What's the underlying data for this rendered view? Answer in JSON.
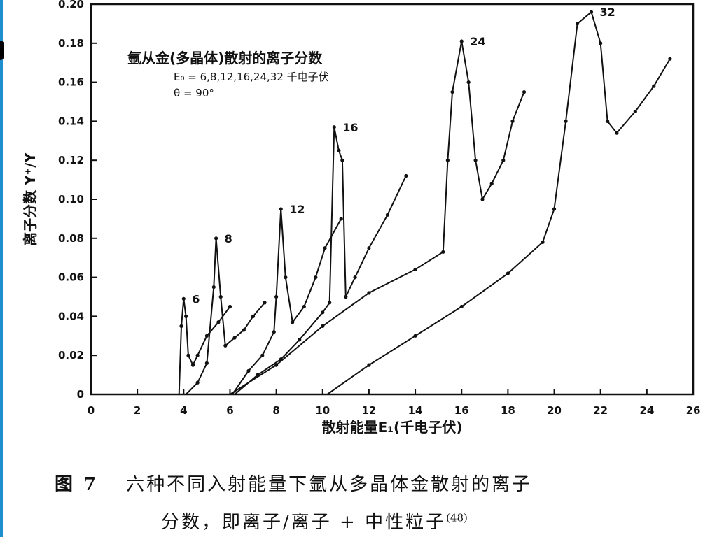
{
  "chart_data": {
    "type": "line",
    "title": "氩从金(多晶体)散射的离子分数",
    "params_line1": "E₀ = 6,8,12,16,24,32 千电子伏",
    "params_line2": "θ = 90°",
    "xlabel": "散射能量E₁(千电子伏)",
    "ylabel": "离子分数 Y⁺/Y",
    "xlim": [
      0,
      26
    ],
    "ylim": [
      0,
      0.2
    ],
    "xticks": [
      "0",
      "2",
      "4",
      "6",
      "8",
      "10",
      "12",
      "14",
      "16",
      "18",
      "20",
      "22",
      "24",
      "26"
    ],
    "yticks": [
      "0",
      "0.02",
      "0.04",
      "0.06",
      "0.08",
      "0.10",
      "0.12",
      "0.14",
      "0.16",
      "0.18",
      "0.20"
    ],
    "series": [
      {
        "name": "6",
        "x": [
          0,
          3.8,
          3.9,
          4.0,
          4.1,
          4.2,
          4.4,
          4.6,
          5.0,
          5.5,
          6.0
        ],
        "y": [
          0,
          0,
          0.035,
          0.049,
          0.04,
          0.02,
          0.015,
          0.02,
          0.03,
          0.037,
          0.045
        ]
      },
      {
        "name": "8",
        "x": [
          4.1,
          4.6,
          5.0,
          5.3,
          5.4,
          5.6,
          5.8,
          6.2,
          6.6,
          7.0,
          7.5
        ],
        "y": [
          0,
          0.006,
          0.016,
          0.055,
          0.08,
          0.05,
          0.025,
          0.029,
          0.033,
          0.04,
          0.047
        ]
      },
      {
        "name": "12",
        "x": [
          6.1,
          6.8,
          7.4,
          7.9,
          8.0,
          8.2,
          8.4,
          8.7,
          9.2,
          9.7,
          10.1,
          10.8
        ],
        "y": [
          0,
          0.012,
          0.02,
          0.032,
          0.05,
          0.095,
          0.06,
          0.037,
          0.045,
          0.06,
          0.075,
          0.09
        ]
      },
      {
        "name": "16",
        "x": [
          6.2,
          7.2,
          8.2,
          9.0,
          10.0,
          10.3,
          10.5,
          10.7,
          10.85,
          11.0,
          11.4,
          12.0,
          12.8,
          13.6
        ],
        "y": [
          0,
          0.01,
          0.018,
          0.028,
          0.042,
          0.047,
          0.137,
          0.125,
          0.12,
          0.05,
          0.06,
          0.075,
          0.092,
          0.112
        ]
      },
      {
        "name": "24",
        "x": [
          6.0,
          8.0,
          10.0,
          12.0,
          14.0,
          15.2,
          15.4,
          15.6,
          16.0,
          16.3,
          16.6,
          16.9,
          17.3,
          17.8,
          18.2,
          18.7
        ],
        "y": [
          0,
          0.015,
          0.035,
          0.052,
          0.064,
          0.073,
          0.12,
          0.155,
          0.181,
          0.16,
          0.12,
          0.1,
          0.108,
          0.12,
          0.14,
          0.155
        ]
      },
      {
        "name": "32",
        "x": [
          10.2,
          12.0,
          14.0,
          16.0,
          18.0,
          19.5,
          20.0,
          20.5,
          21.0,
          21.6,
          22.0,
          22.3,
          22.7,
          23.5,
          24.3,
          25.0
        ],
        "y": [
          0,
          0.015,
          0.03,
          0.045,
          0.062,
          0.078,
          0.095,
          0.14,
          0.19,
          0.196,
          0.18,
          0.14,
          0.134,
          0.145,
          0.158,
          0.172
        ]
      }
    ]
  },
  "caption": {
    "figure_number": "图 7",
    "line1": "六种不同入射能量下氩从多晶体金散射的离子",
    "line2": "分数，即离子/离子 + 中性粒子",
    "reference": "(48)"
  },
  "colors": {
    "ink": "#111111",
    "left_strip": "#1f8fd0"
  }
}
